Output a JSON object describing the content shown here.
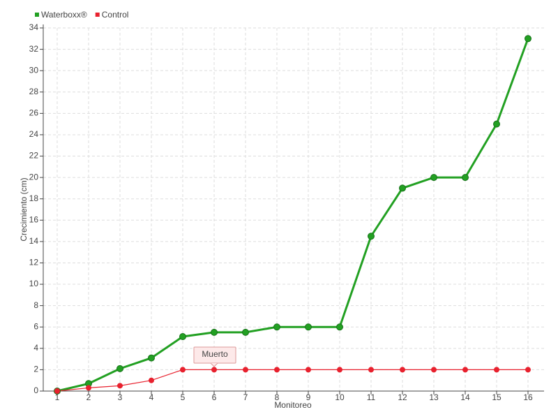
{
  "chart_data": {
    "type": "line",
    "x_label": "Monitoreo",
    "y_label": "Crecimiento (cm)",
    "categories": [
      "1",
      "2",
      "3",
      "4",
      "5",
      "6",
      "7",
      "8",
      "9",
      "10",
      "11",
      "12",
      "13",
      "14",
      "15",
      "16"
    ],
    "series": [
      {
        "name": "Waterboxx®",
        "color": "#22a022",
        "values": [
          0,
          0.7,
          2.1,
          3.1,
          5.1,
          5.5,
          5.5,
          6,
          6,
          6,
          14.5,
          19,
          20,
          20,
          25,
          33
        ]
      },
      {
        "name": "Control",
        "color": "#e8212e",
        "values": [
          0,
          0.3,
          0.5,
          1,
          2,
          2,
          2,
          2,
          2,
          2,
          2,
          2,
          2,
          2,
          2,
          2
        ]
      }
    ],
    "ylim": [
      0,
      34
    ],
    "yticks": [
      0,
      2,
      4,
      6,
      8,
      10,
      12,
      14,
      16,
      18,
      20,
      22,
      24,
      26,
      28,
      30,
      32,
      34
    ],
    "grid": true,
    "legend": "top-left",
    "annotation": "Muerto"
  }
}
